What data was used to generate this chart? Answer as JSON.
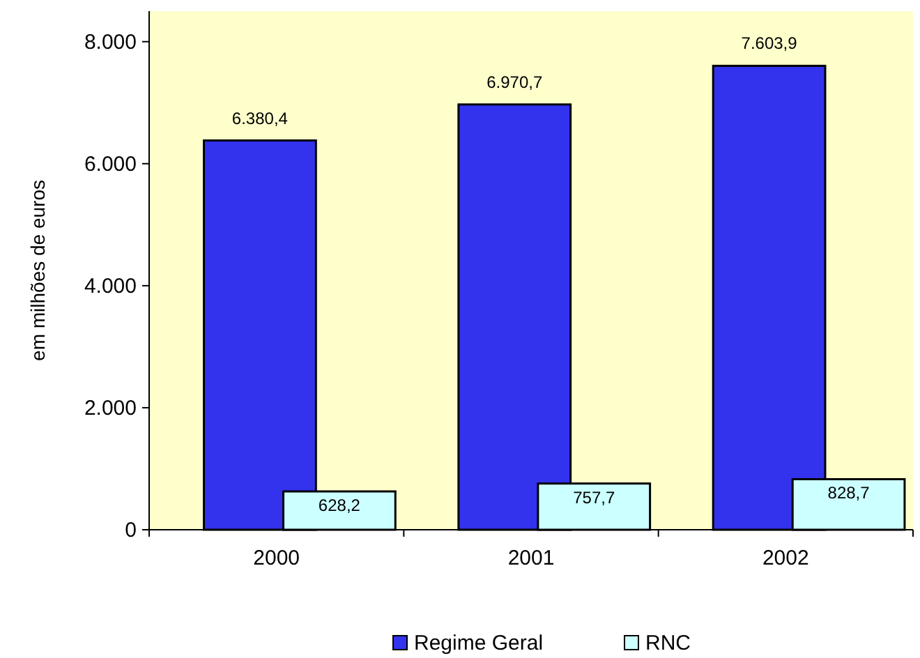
{
  "chart_data": {
    "type": "bar",
    "ylabel": "em milhões de euros",
    "categories": [
      "2000",
      "2001",
      "2002"
    ],
    "series": [
      {
        "name": "Regime Geral",
        "color": "#3333ee",
        "values": [
          6380.4,
          6970.7,
          7603.9
        ],
        "value_labels": [
          "6.380,4",
          "6.970,7",
          "7.603,9"
        ]
      },
      {
        "name": "RNC",
        "color": "#ccffff",
        "values": [
          628.2,
          757.7,
          828.7
        ],
        "value_labels": [
          "628,2",
          "757,7",
          "828,7"
        ]
      }
    ],
    "ylim": [
      0,
      8500
    ],
    "yticks": [
      {
        "value": 0,
        "label": "0"
      },
      {
        "value": 2000,
        "label": "2.000"
      },
      {
        "value": 4000,
        "label": "4.000"
      },
      {
        "value": 6000,
        "label": "6.000"
      },
      {
        "value": 8000,
        "label": "8.000"
      }
    ],
    "legend": "bottom",
    "grid": false
  }
}
